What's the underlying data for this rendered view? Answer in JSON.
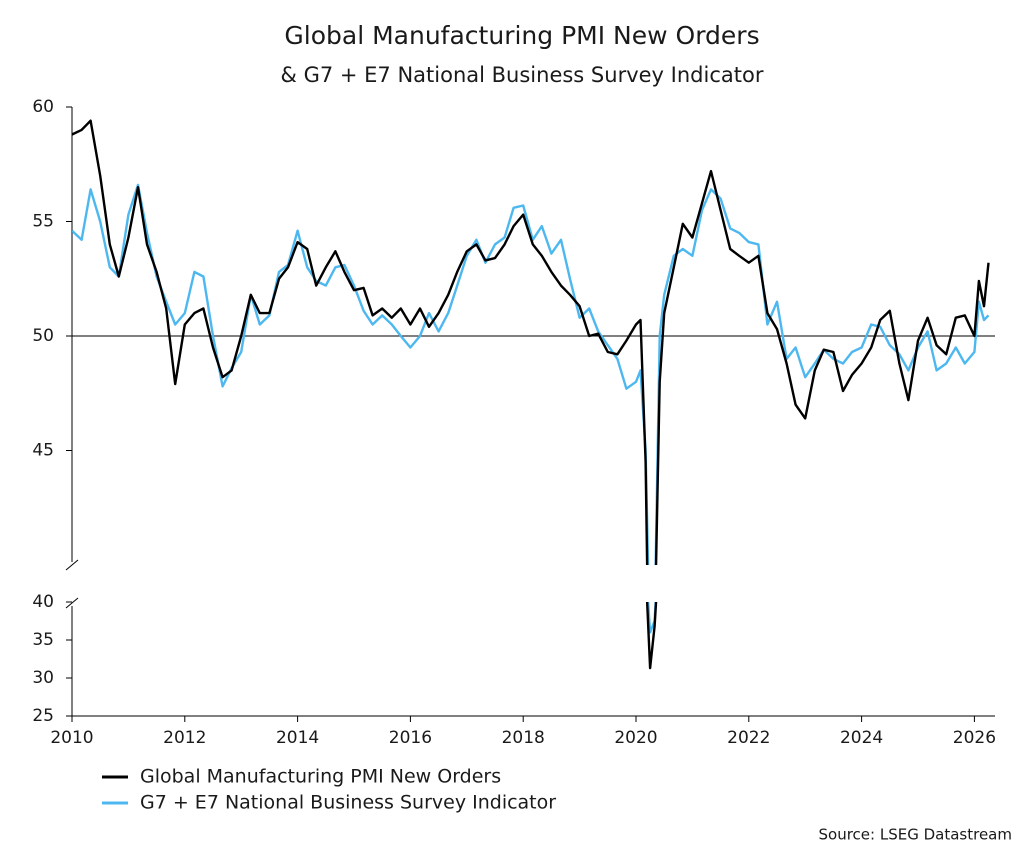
{
  "chart_data": {
    "type": "line",
    "title": "Global Manufacturing PMI New Orders",
    "subtitle": "& G7 + E7 National Business Survey Indicator",
    "source": "Source: LSEG Datastream",
    "x": [
      2010.0,
      2010.17,
      2010.33,
      2010.5,
      2010.67,
      2010.83,
      2011.0,
      2011.17,
      2011.33,
      2011.5,
      2011.67,
      2011.83,
      2012.0,
      2012.17,
      2012.33,
      2012.5,
      2012.67,
      2012.83,
      2013.0,
      2013.17,
      2013.33,
      2013.5,
      2013.67,
      2013.83,
      2014.0,
      2014.17,
      2014.33,
      2014.5,
      2014.67,
      2014.83,
      2015.0,
      2015.17,
      2015.33,
      2015.5,
      2015.67,
      2015.83,
      2016.0,
      2016.17,
      2016.33,
      2016.5,
      2016.67,
      2016.83,
      2017.0,
      2017.17,
      2017.33,
      2017.5,
      2017.67,
      2017.83,
      2018.0,
      2018.17,
      2018.33,
      2018.5,
      2018.67,
      2018.83,
      2019.0,
      2019.17,
      2019.33,
      2019.5,
      2019.67,
      2019.83,
      2020.0,
      2020.08,
      2020.17,
      2020.25,
      2020.33,
      2020.42,
      2020.5,
      2020.67,
      2020.83,
      2021.0,
      2021.17,
      2021.33,
      2021.5,
      2021.67,
      2021.83,
      2022.0,
      2022.17,
      2022.33,
      2022.5,
      2022.67,
      2022.83,
      2023.0,
      2023.17,
      2023.33,
      2023.5,
      2023.67,
      2023.83,
      2024.0,
      2024.17,
      2024.33,
      2024.5,
      2024.67,
      2024.83,
      2025.0,
      2025.17,
      2025.33,
      2025.5,
      2025.67,
      2025.83,
      2026.0,
      2026.08,
      2026.17,
      2026.25
    ],
    "xlim": [
      2010,
      2026.35
    ],
    "xticks": [
      2010,
      2012,
      2014,
      2016,
      2018,
      2020,
      2022,
      2024,
      2026
    ],
    "ylim": [
      40,
      60
    ],
    "yticks": [
      45,
      50,
      55,
      60
    ],
    "lower_ylim": [
      25,
      40
    ],
    "lower_yticks": [
      25,
      30,
      35,
      40
    ],
    "reference_line": 50,
    "series": [
      {
        "name": "Global Manufacturing PMI New Orders",
        "color": "#000000",
        "values": [
          58.8,
          59.0,
          59.4,
          57.0,
          54.0,
          52.6,
          54.3,
          56.5,
          54.0,
          52.8,
          51.2,
          47.9,
          50.5,
          51.0,
          51.2,
          49.5,
          48.2,
          48.5,
          50.0,
          51.8,
          51.0,
          51.0,
          52.5,
          53.0,
          54.1,
          53.8,
          52.2,
          53.0,
          53.7,
          52.8,
          52.0,
          52.1,
          50.9,
          51.2,
          50.8,
          51.2,
          50.5,
          51.2,
          50.4,
          51.0,
          51.8,
          52.8,
          53.7,
          54.0,
          53.3,
          53.4,
          54.0,
          54.8,
          55.3,
          54.0,
          53.5,
          52.8,
          52.2,
          51.8,
          51.3,
          50.0,
          50.1,
          49.3,
          49.2,
          49.8,
          50.5,
          50.7,
          44.5,
          31.3,
          36.8,
          48.0,
          51.0,
          53.0,
          54.9,
          54.3,
          55.8,
          57.2,
          55.5,
          53.8,
          53.5,
          53.2,
          53.5,
          51.0,
          50.3,
          48.8,
          47.0,
          46.4,
          48.5,
          49.4,
          49.3,
          47.6,
          48.3,
          48.8,
          49.5,
          50.7,
          51.1,
          48.8,
          47.2,
          49.8,
          50.8,
          49.6,
          49.2,
          50.8,
          50.9,
          50.0,
          52.4,
          51.3,
          53.2
        ]
      },
      {
        "name": "G7 + E7 National Business Survey Indicator",
        "color": "#4db8f0",
        "values": [
          54.6,
          54.2,
          56.4,
          55.0,
          53.0,
          52.6,
          55.3,
          56.6,
          54.5,
          52.6,
          51.5,
          50.5,
          51.0,
          52.8,
          52.6,
          50.0,
          47.8,
          48.6,
          49.3,
          51.8,
          50.5,
          50.9,
          52.8,
          53.1,
          54.6,
          53.0,
          52.4,
          52.2,
          53.0,
          53.1,
          52.2,
          51.1,
          50.5,
          50.9,
          50.5,
          50.0,
          49.5,
          50.0,
          51.0,
          50.2,
          51.0,
          52.2,
          53.5,
          54.2,
          53.2,
          54.0,
          54.3,
          55.6,
          55.7,
          54.2,
          54.8,
          53.6,
          54.2,
          52.5,
          50.8,
          51.2,
          50.2,
          49.6,
          49.0,
          47.7,
          48.0,
          48.5,
          45.0,
          36.0,
          37.5,
          50.0,
          51.8,
          53.5,
          53.8,
          53.5,
          55.5,
          56.4,
          56.0,
          54.7,
          54.5,
          54.1,
          54.0,
          50.5,
          51.5,
          49.0,
          49.5,
          48.2,
          48.8,
          49.4,
          49.0,
          48.8,
          49.3,
          49.5,
          50.5,
          50.4,
          49.6,
          49.2,
          48.5,
          49.5,
          50.2,
          48.5,
          48.8,
          49.5,
          48.8,
          49.3,
          51.5,
          50.7,
          50.9
        ]
      }
    ]
  }
}
